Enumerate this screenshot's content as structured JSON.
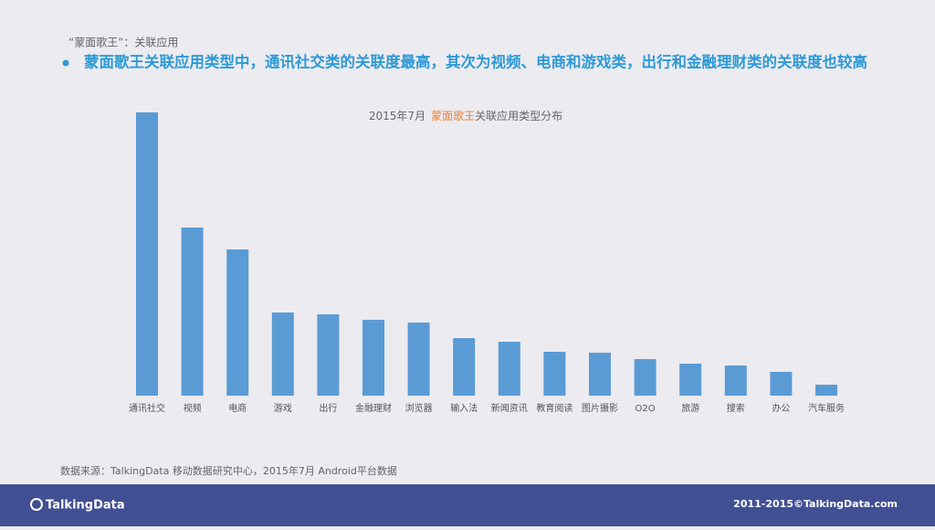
{
  "header": {
    "subtitle": "“蒙面歌王”：关联应用",
    "headline": "蒙面歌王关联应用类型中，通讯社交类的关联度最高，其次为视频、电商和游戏类，出行和金融理财类的关联度也较高"
  },
  "chart_data": {
    "type": "bar",
    "title": "2015年7月",
    "title_highlight": "蒙面歌王",
    "title_suffix": "关联应用类型分布",
    "categories": [
      "通讯社交",
      "视频",
      "电商",
      "游戏",
      "出行",
      "金融理财",
      "浏览器",
      "输入法",
      "新闻资讯",
      "教育阅读",
      "图片摄影",
      "O2O",
      "旅游",
      "搜索",
      "办公",
      "汽车服务"
    ],
    "values": [
      310,
      184,
      160,
      91,
      89,
      83,
      80,
      63,
      59,
      48,
      47,
      40,
      35,
      33,
      26,
      12
    ],
    "color": "#5b9bd5"
  },
  "footer": {
    "source": "数据来源：TalkingData 移动数据研究中心，2015年7月 Android平台数据",
    "logo": "TalkingData",
    "copyright": "2011-2015©TalkingData.com"
  }
}
